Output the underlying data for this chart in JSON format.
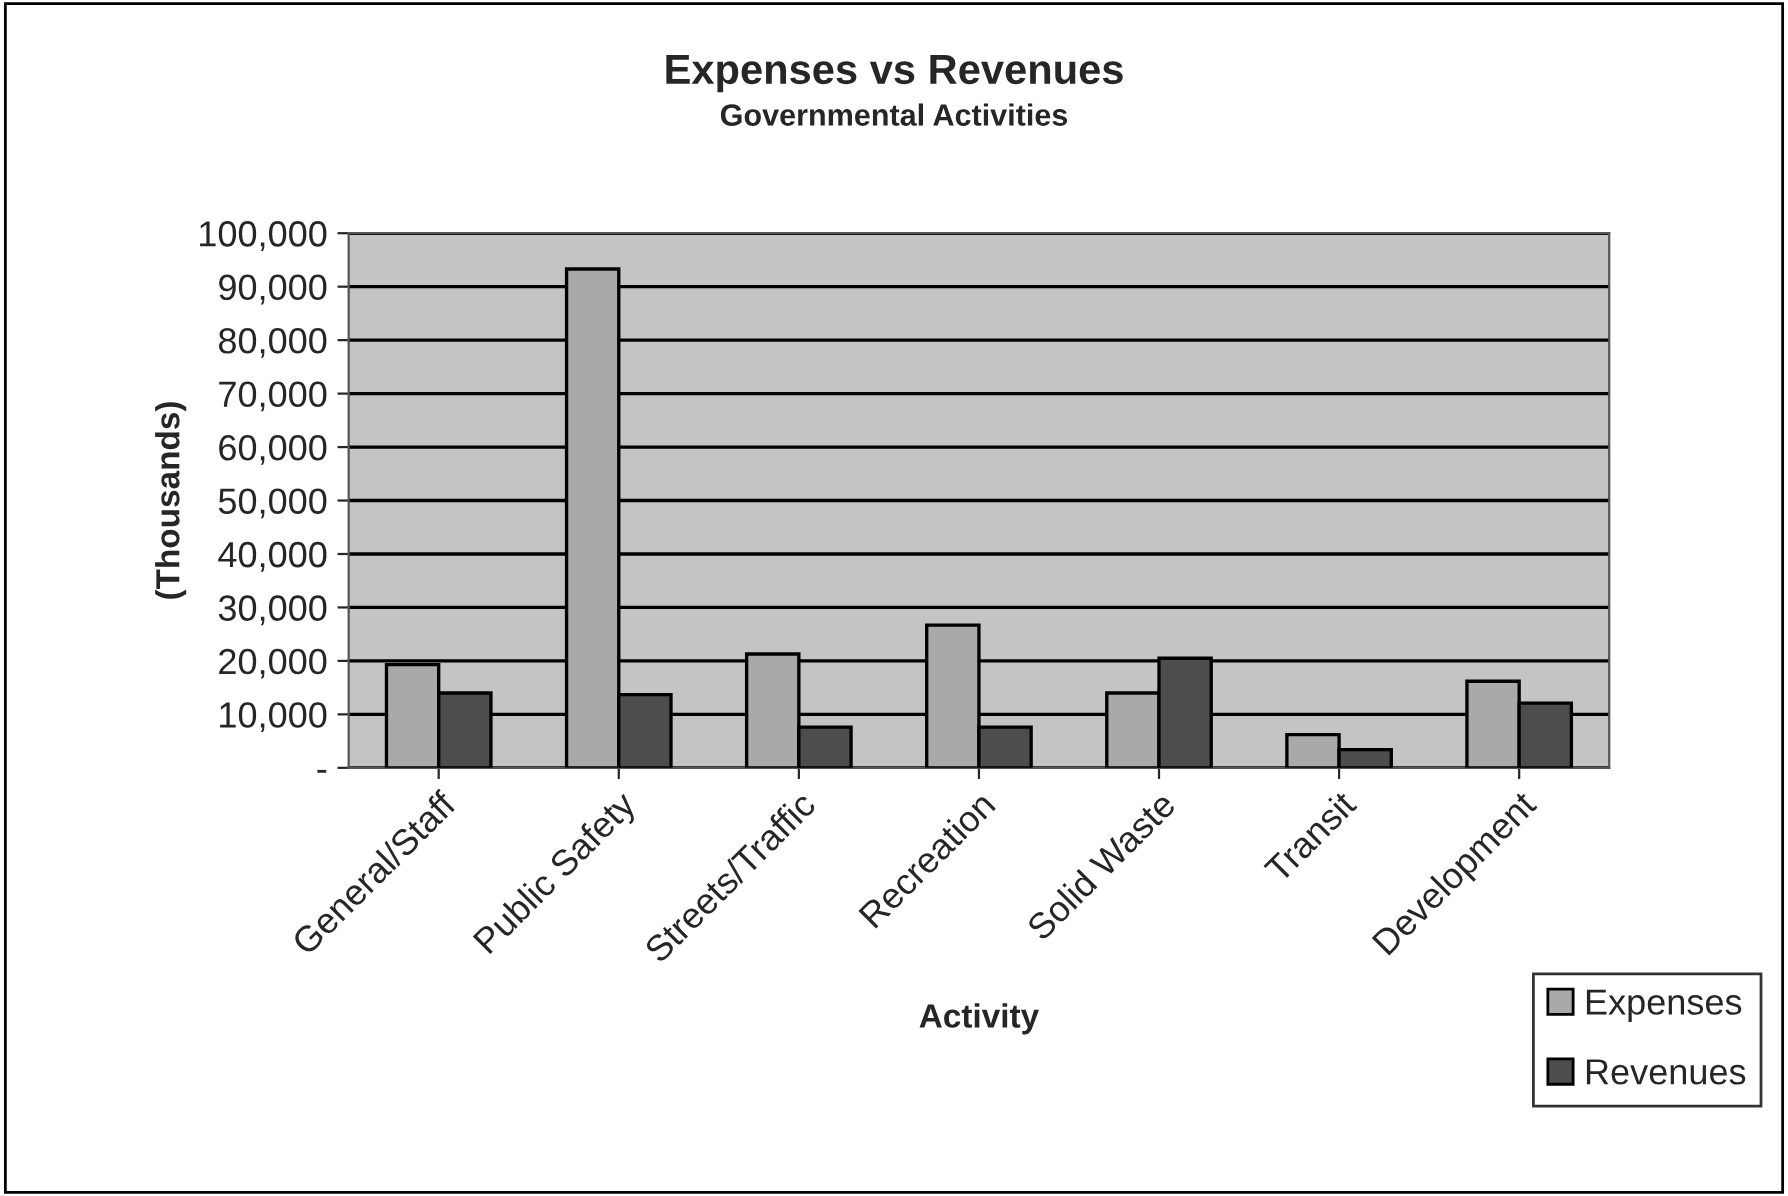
{
  "chart_data": {
    "type": "bar",
    "title": "Expenses vs Revenues",
    "subtitle": "Governmental Activities",
    "xlabel": "Activity",
    "ylabel": "(Thousands)",
    "categories": [
      "General/Staff",
      "Public Safety",
      "Streets/Traffic",
      "Recreation",
      "Solid Waste",
      "Transit",
      "Development"
    ],
    "series": [
      {
        "name": "Expenses",
        "color": "#a9a9a9",
        "values": [
          19300,
          93300,
          21300,
          26700,
          14000,
          6200,
          16200
        ]
      },
      {
        "name": "Revenues",
        "color": "#4d4d4d",
        "values": [
          14000,
          13700,
          7600,
          7600,
          20500,
          3400,
          12100
        ]
      }
    ],
    "ylim": [
      0,
      100000
    ],
    "yticks": [
      {
        "value": 0,
        "label": "-"
      },
      {
        "value": 10000,
        "label": "10,000"
      },
      {
        "value": 20000,
        "label": "20,000"
      },
      {
        "value": 30000,
        "label": "30,000"
      },
      {
        "value": 40000,
        "label": "40,000"
      },
      {
        "value": 50000,
        "label": "50,000"
      },
      {
        "value": 60000,
        "label": "60,000"
      },
      {
        "value": 70000,
        "label": "70,000"
      },
      {
        "value": 80000,
        "label": "80,000"
      },
      {
        "value": 90000,
        "label": "90,000"
      },
      {
        "value": 100000,
        "label": "100,000"
      }
    ],
    "grid": "y",
    "legend": "bottom right"
  }
}
